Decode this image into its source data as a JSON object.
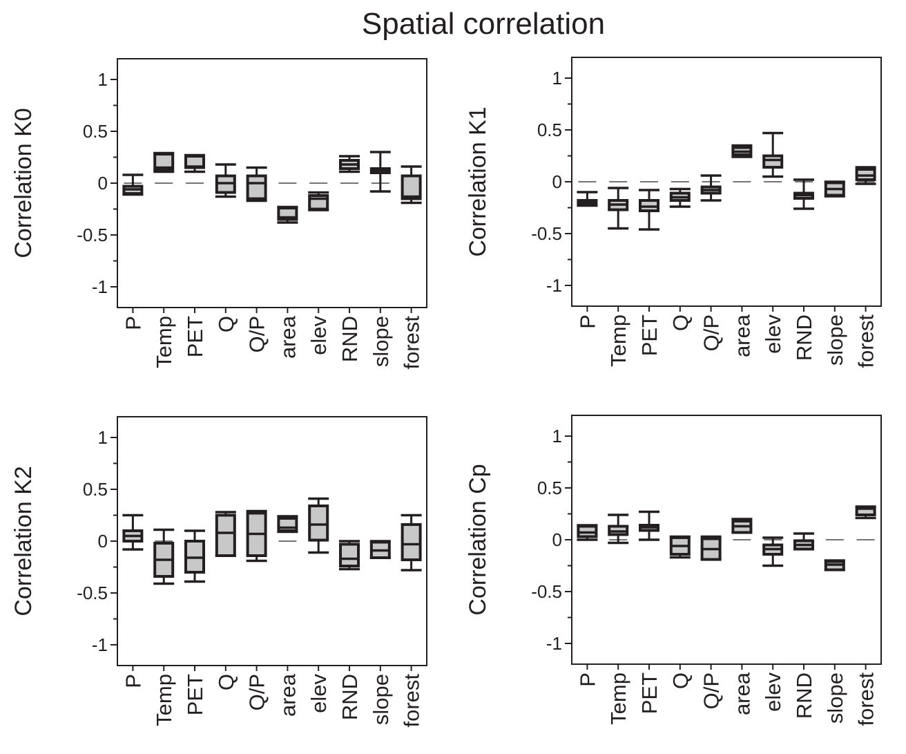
{
  "title": "Spatial correlation",
  "colors": {
    "box_fill": "#c8c8c8",
    "stroke": "#231f20"
  },
  "chart_data": [
    {
      "type": "box",
      "ylabel": "Correlation K0",
      "ylim": [
        -1.2,
        1.2
      ],
      "yticks": [
        1,
        0.5,
        0,
        -0.5,
        -1
      ],
      "ytick_labels": [
        "1",
        "0.5",
        "0",
        "-0.5",
        "-1"
      ],
      "reference_line": 0,
      "categories": [
        "P",
        "Temp",
        "PET",
        "Q",
        "Q/P",
        "area",
        "elev",
        "RND",
        "slope",
        "forest"
      ],
      "boxes": [
        {
          "min": -0.11,
          "q1": -0.1,
          "median": -0.06,
          "q3": -0.03,
          "max": 0.08
        },
        {
          "min": 0.11,
          "q1": 0.13,
          "median": 0.15,
          "q3": 0.28,
          "max": 0.29
        },
        {
          "min": 0.11,
          "q1": 0.15,
          "median": 0.16,
          "q3": 0.26,
          "max": 0.27
        },
        {
          "min": -0.13,
          "q1": -0.09,
          "median": 0.0,
          "q3": 0.07,
          "max": 0.18
        },
        {
          "min": -0.17,
          "q1": -0.15,
          "median": 0.0,
          "q3": 0.07,
          "max": 0.15
        },
        {
          "min": -0.38,
          "q1": -0.35,
          "median": -0.33,
          "q3": -0.24,
          "max": -0.23
        },
        {
          "min": -0.26,
          "q1": -0.25,
          "median": -0.15,
          "q3": -0.12,
          "max": -0.09
        },
        {
          "min": 0.11,
          "q1": 0.14,
          "median": 0.18,
          "q3": 0.22,
          "max": 0.26
        },
        {
          "min": -0.08,
          "q1": 0.1,
          "median": 0.12,
          "q3": 0.14,
          "max": 0.3
        },
        {
          "min": -0.19,
          "q1": -0.15,
          "median": -0.13,
          "q3": 0.07,
          "max": 0.16
        }
      ]
    },
    {
      "type": "box",
      "ylabel": "Correlation K1",
      "ylim": [
        -1.2,
        1.2
      ],
      "yticks": [
        1,
        0.5,
        0,
        -0.5,
        -1
      ],
      "ytick_labels": [
        "1",
        "0.5",
        "0",
        "-0.5",
        "-1"
      ],
      "reference_line": 0,
      "categories": [
        "P",
        "Temp",
        "PET",
        "Q",
        "Q/P",
        "area",
        "elev",
        "RND",
        "slope",
        "forest"
      ],
      "boxes": [
        {
          "min": -0.23,
          "q1": -0.22,
          "median": -0.2,
          "q3": -0.18,
          "max": -0.1
        },
        {
          "min": -0.45,
          "q1": -0.27,
          "median": -0.22,
          "q3": -0.18,
          "max": -0.06
        },
        {
          "min": -0.46,
          "q1": -0.28,
          "median": -0.24,
          "q3": -0.18,
          "max": -0.08
        },
        {
          "min": -0.24,
          "q1": -0.18,
          "median": -0.15,
          "q3": -0.11,
          "max": -0.07
        },
        {
          "min": -0.18,
          "q1": -0.11,
          "median": -0.08,
          "q3": -0.05,
          "max": 0.06
        },
        {
          "min": 0.24,
          "q1": 0.26,
          "median": 0.29,
          "q3": 0.33,
          "max": 0.35
        },
        {
          "min": 0.05,
          "q1": 0.14,
          "median": 0.21,
          "q3": 0.25,
          "max": 0.47
        },
        {
          "min": -0.26,
          "q1": -0.16,
          "median": -0.13,
          "q3": -0.11,
          "max": 0.02
        },
        {
          "min": -0.14,
          "q1": -0.13,
          "median": -0.07,
          "q3": -0.01,
          "max": 0.0
        },
        {
          "min": -0.02,
          "q1": 0.02,
          "median": 0.06,
          "q3": 0.12,
          "max": 0.14
        }
      ]
    },
    {
      "type": "box",
      "ylabel": "Correlation K2",
      "ylim": [
        -1.2,
        1.2
      ],
      "yticks": [
        1,
        0.5,
        0,
        -0.5,
        -1
      ],
      "ytick_labels": [
        "1",
        "0.5",
        "0",
        "-0.5",
        "-1"
      ],
      "reference_line": 0,
      "categories": [
        "P",
        "Temp",
        "PET",
        "Q",
        "Q/P",
        "area",
        "elev",
        "RND",
        "slope",
        "forest"
      ],
      "boxes": [
        {
          "min": -0.08,
          "q1": 0.0,
          "median": 0.05,
          "q3": 0.1,
          "max": 0.25
        },
        {
          "min": -0.41,
          "q1": -0.34,
          "median": -0.18,
          "q3": -0.02,
          "max": 0.11
        },
        {
          "min": -0.39,
          "q1": -0.3,
          "median": -0.16,
          "q3": 0.0,
          "max": 0.1
        },
        {
          "min": -0.14,
          "q1": -0.14,
          "median": 0.08,
          "q3": 0.25,
          "max": 0.28
        },
        {
          "min": -0.19,
          "q1": -0.14,
          "median": 0.07,
          "q3": 0.27,
          "max": 0.29
        },
        {
          "min": 0.09,
          "q1": 0.1,
          "median": 0.13,
          "q3": 0.22,
          "max": 0.24
        },
        {
          "min": -0.11,
          "q1": 0.01,
          "median": 0.16,
          "q3": 0.34,
          "max": 0.41
        },
        {
          "min": -0.27,
          "q1": -0.24,
          "median": -0.17,
          "q3": -0.03,
          "max": 0.0
        },
        {
          "min": -0.16,
          "q1": -0.16,
          "median": -0.09,
          "q3": -0.01,
          "max": 0.0
        },
        {
          "min": -0.28,
          "q1": -0.18,
          "median": -0.03,
          "q3": 0.16,
          "max": 0.25
        }
      ]
    },
    {
      "type": "box",
      "ylabel": "Correlation Cp",
      "ylim": [
        -1.2,
        1.2
      ],
      "yticks": [
        1,
        0.5,
        0,
        -0.5,
        -1
      ],
      "ytick_labels": [
        "1",
        "0.5",
        "0",
        "-0.5",
        "-1"
      ],
      "reference_line": 0,
      "categories": [
        "P",
        "Temp",
        "PET",
        "Q",
        "Q/P",
        "area",
        "elev",
        "RND",
        "slope",
        "forest"
      ],
      "boxes": [
        {
          "min": 0.0,
          "q1": 0.03,
          "median": 0.07,
          "q3": 0.13,
          "max": 0.14
        },
        {
          "min": -0.03,
          "q1": 0.05,
          "median": 0.08,
          "q3": 0.13,
          "max": 0.24
        },
        {
          "min": 0.0,
          "q1": 0.09,
          "median": 0.12,
          "q3": 0.14,
          "max": 0.27
        },
        {
          "min": -0.17,
          "q1": -0.14,
          "median": -0.06,
          "q3": 0.02,
          "max": 0.03
        },
        {
          "min": -0.19,
          "q1": -0.19,
          "median": -0.09,
          "q3": 0.01,
          "max": 0.03
        },
        {
          "min": 0.07,
          "q1": 0.07,
          "median": 0.13,
          "q3": 0.18,
          "max": 0.2
        },
        {
          "min": -0.25,
          "q1": -0.14,
          "median": -0.09,
          "q3": -0.05,
          "max": 0.02
        },
        {
          "min": -0.09,
          "q1": -0.09,
          "median": -0.05,
          "q3": -0.01,
          "max": 0.06
        },
        {
          "min": -0.29,
          "q1": -0.29,
          "median": -0.24,
          "q3": -0.21,
          "max": -0.2
        },
        {
          "min": 0.21,
          "q1": 0.24,
          "median": 0.3,
          "q3": 0.31,
          "max": 0.32
        }
      ]
    }
  ]
}
